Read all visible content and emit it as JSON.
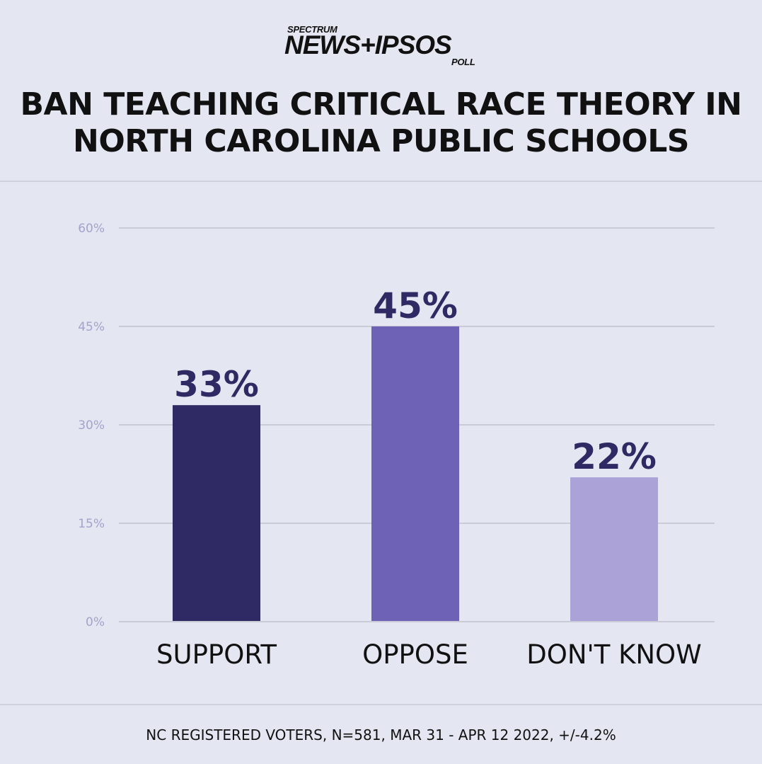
{
  "logo": {
    "spectrum": "SPECTRUM",
    "main": "NEWS+IPSOS",
    "poll": "POLL"
  },
  "title_line1": "BAN TEACHING CRITICAL RACE THEORY IN",
  "title_line2": "NORTH CAROLINA PUBLIC SCHOOLS",
  "footnote": "NC REGISTERED VOTERS, N=581, MAR 31 - APR 12 2022, +/-4.2%",
  "colors": {
    "background": "#e4e6f1",
    "grid": "#c9cbd6",
    "tick": "#a3a3cc",
    "value_label": "#2f2a63"
  },
  "chart_data": {
    "type": "bar",
    "title": "BAN TEACHING CRITICAL RACE THEORY IN NORTH CAROLINA PUBLIC SCHOOLS",
    "categories": [
      "SUPPORT",
      "OPPOSE",
      "DON'T KNOW"
    ],
    "values": [
      33,
      45,
      22
    ],
    "value_labels": [
      "33%",
      "45%",
      "22%"
    ],
    "bar_colors": [
      "#2f2a63",
      "#6e62b6",
      "#aba3d8"
    ],
    "ylim": [
      0,
      60
    ],
    "yticks": [
      0,
      15,
      30,
      45,
      60
    ],
    "ytick_labels": [
      "0%",
      "15%",
      "30%",
      "45%",
      "60%"
    ],
    "grid": true,
    "xlabel": "",
    "ylabel": ""
  }
}
